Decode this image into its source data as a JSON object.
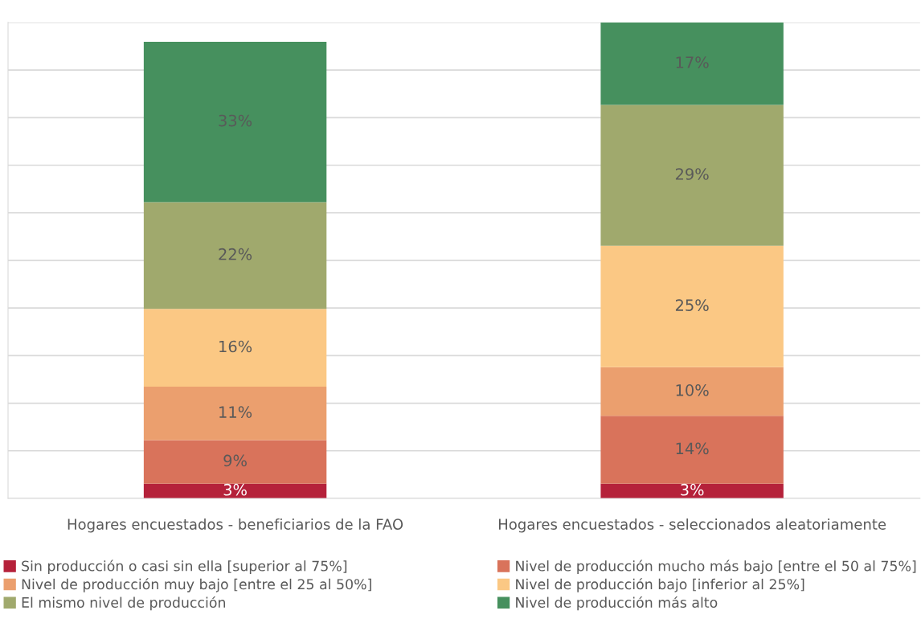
{
  "chart_data": {
    "type": "bar",
    "stacked": true,
    "grid": "y",
    "legend": "bottom",
    "tick_labels": "x",
    "categories": [
      "Hogares encuestados - beneficiarios de la FAO",
      "Hogares encuestados - seleccionados aleatoriamente"
    ],
    "series": [
      {
        "name": "Sin producción o casi sin ella [superior al 75%]",
        "color": "#b5213a",
        "values": [
          3,
          3
        ],
        "value_labels": [
          "3%",
          "3%"
        ]
      },
      {
        "name": "Nivel de producción mucho más bajo [entre el 50 al 75%]",
        "color": "#d9735b",
        "values": [
          9,
          14
        ],
        "value_labels": [
          "9%",
          "14%"
        ]
      },
      {
        "name": "Nivel de producción muy bajo [entre el 25 al 50%]",
        "color": "#eb9f6e",
        "values": [
          11,
          10
        ],
        "value_labels": [
          "11%",
          "10%"
        ]
      },
      {
        "name": "Nivel de producción bajo [inferior al 25%]",
        "color": "#fbc884",
        "values": [
          16,
          25
        ],
        "value_labels": [
          "16%",
          "25%"
        ]
      },
      {
        "name": "El mismo nivel de producción",
        "color": "#a0a96d",
        "values": [
          22,
          29
        ],
        "value_labels": [
          "22%",
          "29%"
        ]
      },
      {
        "name": "Nivel de producción más alto",
        "color": "#46905e",
        "values": [
          33,
          17
        ],
        "value_labels": [
          "33%",
          "17%"
        ]
      }
    ]
  }
}
